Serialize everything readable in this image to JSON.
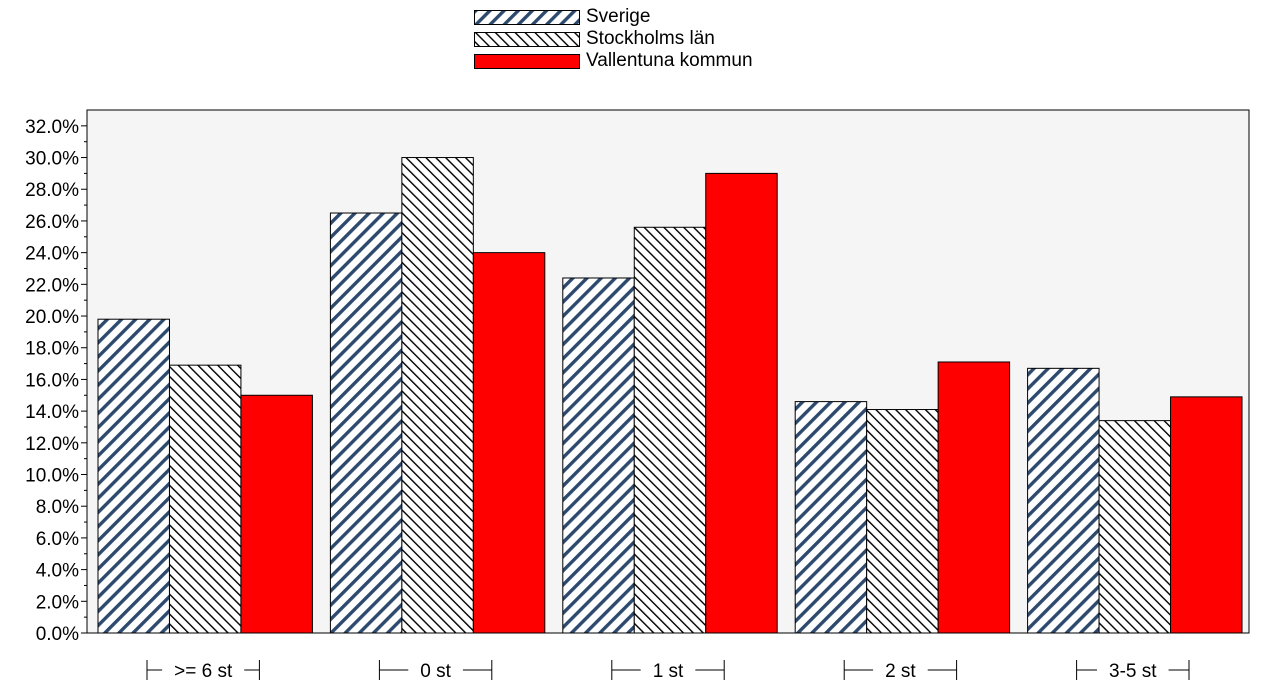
{
  "chart_data": {
    "type": "bar",
    "categories": [
      ">= 6 st",
      "0 st",
      "1 st",
      "2 st",
      "3-5 st"
    ],
    "series": [
      {
        "name": "Sverige",
        "values": [
          19.8,
          26.5,
          22.4,
          14.6,
          16.7
        ],
        "pattern": "diag-blue"
      },
      {
        "name": "Stockholms län",
        "values": [
          16.9,
          30.0,
          25.6,
          14.1,
          13.4
        ],
        "pattern": "diag-black"
      },
      {
        "name": "Vallentuna kommun",
        "values": [
          15.0,
          24.0,
          29.0,
          17.1,
          14.9
        ],
        "pattern": "solid-red"
      }
    ],
    "ylim": [
      0,
      33
    ],
    "yticks": [
      "0.0%",
      "2.0%",
      "4.0%",
      "6.0%",
      "8.0%",
      "10.0%",
      "12.0%",
      "14.0%",
      "16.0%",
      "18.0%",
      "20.0%",
      "22.0%",
      "24.0%",
      "26.0%",
      "28.0%",
      "30.0%",
      "32.0%"
    ],
    "ytick_values": [
      0,
      2,
      4,
      6,
      8,
      10,
      12,
      14,
      16,
      18,
      20,
      22,
      24,
      26,
      28,
      30,
      32
    ],
    "title": "",
    "xlabel": "",
    "ylabel": "",
    "grid": false,
    "legend_position": "top-center",
    "colors": {
      "sverige_stripe": "#2d4a6e",
      "sverige_bg": "#ffffff",
      "stockholm_stripe": "#000000",
      "vallentuna": "#ff0000",
      "plot_bg": "#f5f5f5"
    }
  }
}
